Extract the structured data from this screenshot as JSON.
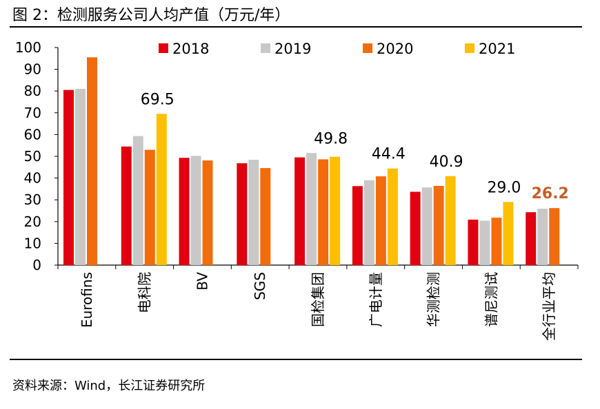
{
  "figure": {
    "title": "图 2：检测服务公司人均产值（万元/年）",
    "source": "资料来源：Wind，长江证券研究所"
  },
  "chart_data": {
    "type": "bar",
    "title": "检测服务公司人均产值（万元/年）",
    "xlabel": "",
    "ylabel": "",
    "ylim": [
      0,
      100
    ],
    "yticks": [
      0,
      10,
      20,
      30,
      40,
      50,
      60,
      70,
      80,
      90,
      100
    ],
    "grid": false,
    "legend_position": "top",
    "categories": [
      "Eurofins",
      "电科院",
      "BV",
      "SGS",
      "国检集团",
      "广电计量",
      "华测检测",
      "谱尼测试",
      "全行业平均"
    ],
    "series": [
      {
        "name": "2018",
        "color": "#e00010",
        "values": [
          80.5,
          54.5,
          49.3,
          46.8,
          49.5,
          36.3,
          33.7,
          20.9,
          24.3
        ]
      },
      {
        "name": "2019",
        "color": "#c8c8c8",
        "values": [
          81.0,
          59.3,
          50.2,
          48.4,
          51.5,
          39.0,
          35.7,
          20.4,
          25.9
        ]
      },
      {
        "name": "2020",
        "color": "#f26c0d",
        "values": [
          95.5,
          53.0,
          48.1,
          44.6,
          48.6,
          40.8,
          36.4,
          21.8,
          26.2
        ]
      },
      {
        "name": "2021",
        "color": "#fcc000",
        "values": [
          null,
          69.5,
          null,
          null,
          49.8,
          44.4,
          40.9,
          29.0,
          null
        ]
      }
    ],
    "annotations": [
      {
        "category": "电科院",
        "text": "69.5",
        "color": "#000000"
      },
      {
        "category": "国检集团",
        "text": "49.8",
        "color": "#000000"
      },
      {
        "category": "广电计量",
        "text": "44.4",
        "color": "#000000"
      },
      {
        "category": "华测检测",
        "text": "40.9",
        "color": "#000000"
      },
      {
        "category": "谱尼测试",
        "text": "29.0",
        "color": "#000000"
      },
      {
        "category": "全行业平均",
        "text": "26.2",
        "color": "#c0602a"
      }
    ]
  }
}
